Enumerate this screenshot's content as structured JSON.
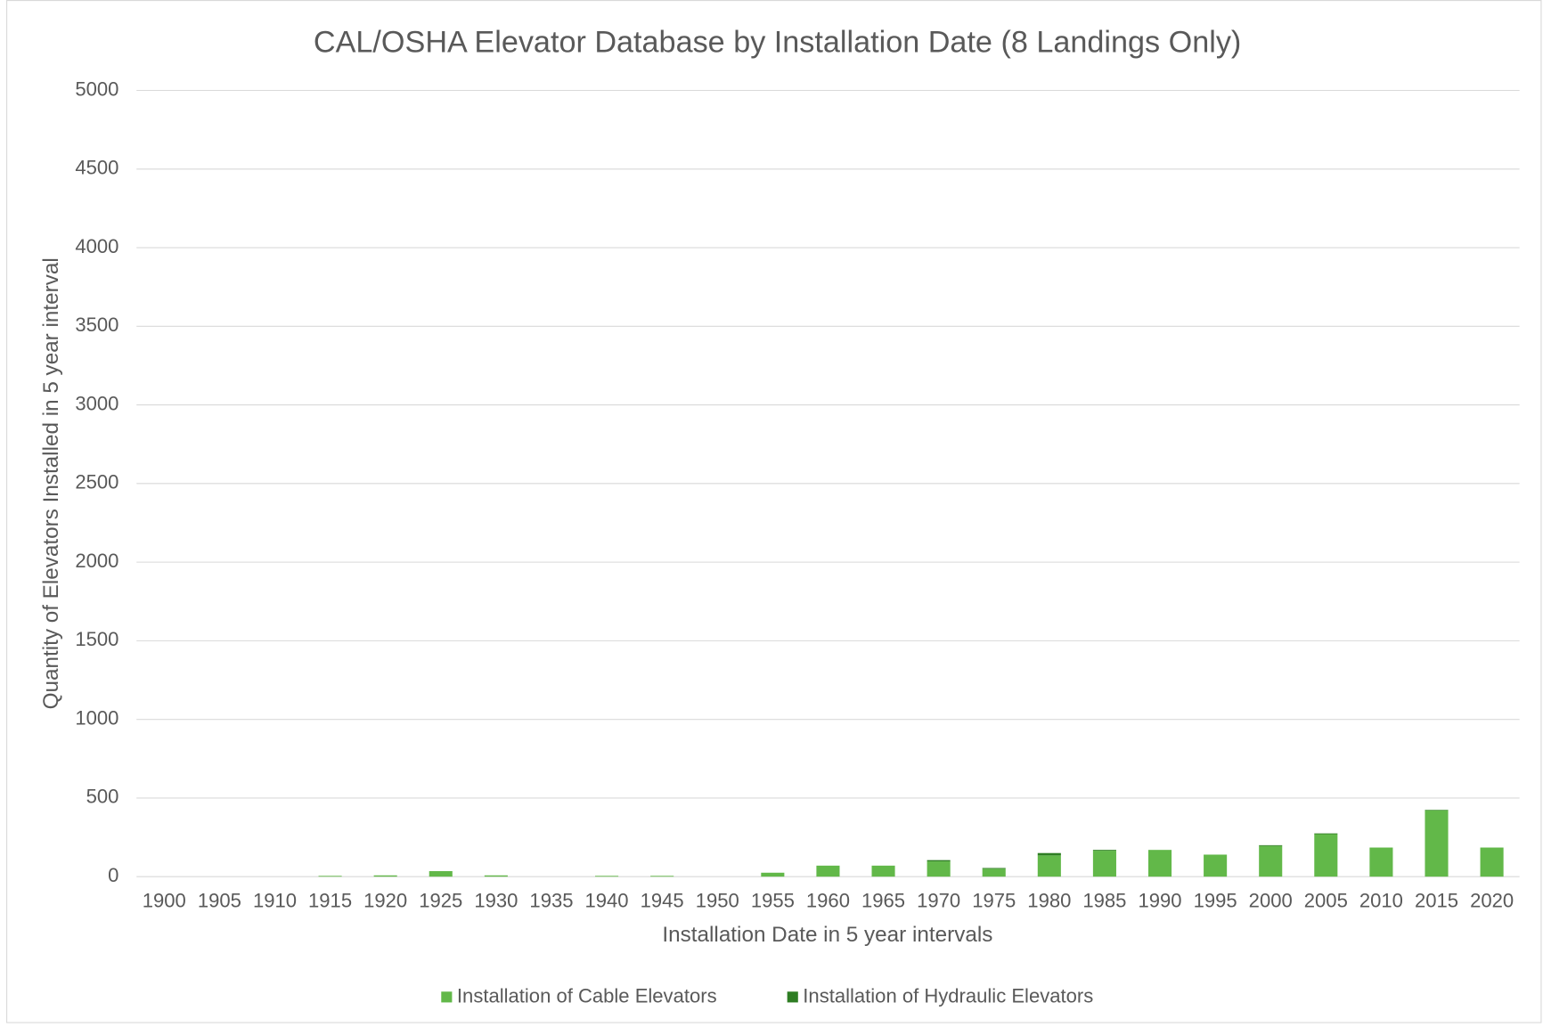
{
  "chart_data": {
    "type": "stacked_bar",
    "title": "CAL/OSHA Elevator Database by Installation Date (8 Landings Only)",
    "x_label": "Installation Date in 5 year intervals",
    "y_label": "Quantity of Elevators Installed in 5 year interval",
    "categories": [
      "1900",
      "1905",
      "1910",
      "1915",
      "1920",
      "1925",
      "1930",
      "1935",
      "1940",
      "1945",
      "1950",
      "1955",
      "1960",
      "1965",
      "1970",
      "1975",
      "1980",
      "1985",
      "1990",
      "1995",
      "2000",
      "2005",
      "2010",
      "2015",
      "2020"
    ],
    "series": [
      {
        "name": "Installation of Cable Elevators",
        "color": "#62b849",
        "values": [
          0,
          0,
          0,
          5,
          8,
          35,
          8,
          0,
          5,
          5,
          0,
          25,
          70,
          70,
          97,
          50,
          135,
          165,
          170,
          140,
          195,
          270,
          185,
          422,
          185
        ]
      },
      {
        "name": "Installation of Hydraulic Elevators",
        "color": "#2e7d23",
        "values": [
          0,
          0,
          0,
          0,
          0,
          0,
          0,
          0,
          0,
          0,
          0,
          0,
          0,
          0,
          8,
          5,
          15,
          5,
          0,
          0,
          5,
          5,
          0,
          3,
          0
        ]
      }
    ],
    "ylim": [
      0,
      5000
    ],
    "yticks": [
      0,
      500,
      1000,
      1500,
      2000,
      2500,
      3000,
      3500,
      4000,
      4500,
      5000
    ],
    "grid": true,
    "legend": "bottom"
  }
}
